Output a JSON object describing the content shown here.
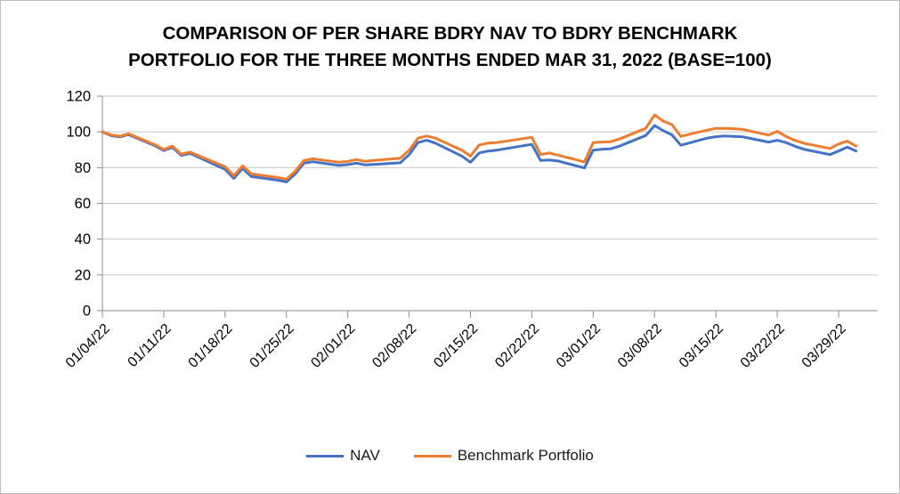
{
  "page": {
    "background": "#ffffff",
    "border_color": "#bfbfbf"
  },
  "chart_data": {
    "type": "line",
    "title_line1": "COMPARISON OF PER SHARE BDRY NAV TO BDRY BENCHMARK",
    "title_line2": "PORTFOLIO FOR THE THREE MONTHS ENDED MAR 31, 2022 (BASE=100)",
    "xlabel": "",
    "ylabel": "",
    "ylim": [
      0,
      120
    ],
    "yticks": [
      0,
      20,
      40,
      60,
      80,
      100,
      120
    ],
    "grid": true,
    "legend_position": "bottom",
    "axis_color": "#8c8c8c",
    "grid_color": "#c9c9c9",
    "xtick_labels": [
      "01/04/22",
      "01/11/22",
      "01/18/22",
      "01/25/22",
      "02/01/22",
      "02/08/22",
      "02/15/22",
      "02/22/22",
      "03/01/22",
      "03/08/22",
      "03/15/22",
      "03/22/22",
      "03/29/22"
    ],
    "xtick_offsets": [
      0,
      7,
      14,
      21,
      28,
      35,
      42,
      49,
      56,
      63,
      70,
      77,
      84
    ],
    "x_dates": [
      "01/04/22",
      "01/05/22",
      "01/06/22",
      "01/07/22",
      "01/10/22",
      "01/11/22",
      "01/12/22",
      "01/13/22",
      "01/14/22",
      "01/18/22",
      "01/19/22",
      "01/20/22",
      "01/21/22",
      "01/24/22",
      "01/25/22",
      "01/26/22",
      "01/27/22",
      "01/28/22",
      "01/31/22",
      "02/01/22",
      "02/02/22",
      "02/03/22",
      "02/04/22",
      "02/07/22",
      "02/08/22",
      "02/09/22",
      "02/10/22",
      "02/11/22",
      "02/14/22",
      "02/15/22",
      "02/16/22",
      "02/17/22",
      "02/18/22",
      "02/22/22",
      "02/23/22",
      "02/24/22",
      "02/25/22",
      "02/28/22",
      "03/01/22",
      "03/02/22",
      "03/03/22",
      "03/04/22",
      "03/07/22",
      "03/08/22",
      "03/09/22",
      "03/10/22",
      "03/11/22",
      "03/14/22",
      "03/15/22",
      "03/16/22",
      "03/17/22",
      "03/18/22",
      "03/21/22",
      "03/22/22",
      "03/23/22",
      "03/24/22",
      "03/25/22",
      "03/28/22",
      "03/29/22",
      "03/30/22",
      "03/31/22"
    ],
    "day_offsets": [
      0,
      1,
      2,
      3,
      6,
      7,
      8,
      9,
      10,
      14,
      15,
      16,
      17,
      20,
      21,
      22,
      23,
      24,
      27,
      28,
      29,
      30,
      31,
      34,
      35,
      36,
      37,
      38,
      41,
      42,
      43,
      44,
      45,
      49,
      50,
      51,
      52,
      55,
      56,
      57,
      58,
      59,
      62,
      63,
      64,
      65,
      66,
      69,
      70,
      71,
      72,
      73,
      76,
      77,
      78,
      79,
      80,
      83,
      84,
      85,
      86
    ],
    "series": [
      {
        "name": "NAV",
        "color": "#4472C4",
        "values": [
          100,
          97.9,
          97.2,
          98.5,
          92.2,
          89.6,
          91.3,
          86.9,
          88.0,
          79.0,
          74.0,
          79.5,
          75.0,
          73.0,
          72.0,
          76.5,
          82.5,
          83.3,
          81.2,
          81.7,
          82.5,
          81.5,
          81.8,
          82.7,
          87.3,
          94.0,
          95.3,
          93.7,
          86.5,
          83.0,
          88.2,
          89.3,
          89.8,
          93.0,
          84.0,
          84.3,
          83.7,
          79.8,
          89.8,
          90.3,
          90.5,
          92.0,
          98.0,
          103.5,
          100.7,
          98.3,
          92.5,
          96.5,
          97.3,
          97.7,
          97.5,
          97.3,
          94.3,
          95.3,
          94.0,
          92.0,
          90.3,
          87.3,
          89.3,
          91.5,
          89.3
        ]
      },
      {
        "name": "Benchmark Portfolio",
        "color": "#ED7D31",
        "values": [
          100,
          98.3,
          97.6,
          99.0,
          92.8,
          90.2,
          92.0,
          87.6,
          88.7,
          80.5,
          75.5,
          81.0,
          76.5,
          74.5,
          73.5,
          78.0,
          84.0,
          85.0,
          83.0,
          83.5,
          84.5,
          83.5,
          84.0,
          85.3,
          89.8,
          96.5,
          97.7,
          96.5,
          89.8,
          86.5,
          92.7,
          93.7,
          94.0,
          97.0,
          87.3,
          88.2,
          87.0,
          83.2,
          94.0,
          94.3,
          94.5,
          96.0,
          102.0,
          109.5,
          106.0,
          104.0,
          97.5,
          101.0,
          102.0,
          102.0,
          101.8,
          101.5,
          98.2,
          100.3,
          97.5,
          95.3,
          93.7,
          90.7,
          93.2,
          94.8,
          92.0
        ]
      }
    ]
  }
}
